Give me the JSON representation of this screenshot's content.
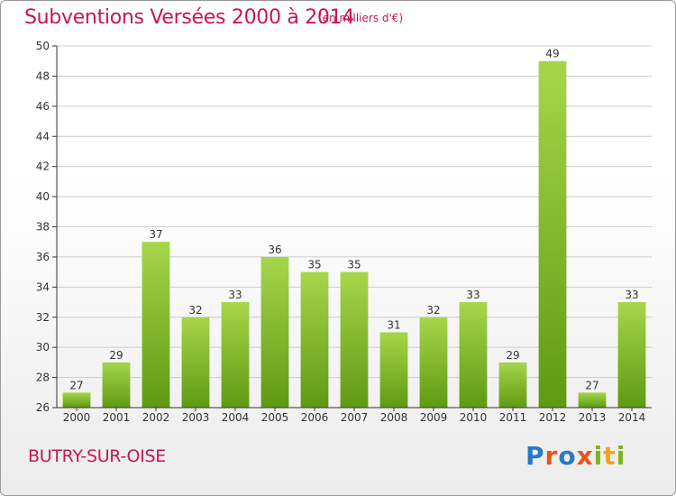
{
  "header": {
    "title": "Subventions Versées 2000 à 2014",
    "unit": "(en milliers d'€)"
  },
  "footer": {
    "place": "BUTRY-SUR-OISE",
    "logo_letters": [
      "P",
      "r",
      "o",
      "x",
      "i",
      "t",
      "i"
    ],
    "logo_colors": [
      "#2a79c9",
      "#e8541c",
      "#2a79c9",
      "#e8541c",
      "#7cb51b",
      "#f2a51c",
      "#7cb51b"
    ]
  },
  "colors": {
    "bar_light": "#a6d64b",
    "bar_dark": "#5f9a12",
    "axis": "#333333",
    "grid": "#cccccc"
  },
  "chart_data": {
    "type": "bar",
    "categories": [
      "2000",
      "2001",
      "2002",
      "2003",
      "2004",
      "2005",
      "2006",
      "2007",
      "2008",
      "2009",
      "2010",
      "2011",
      "2012",
      "2013",
      "2014"
    ],
    "values": [
      27,
      29,
      37,
      32,
      33,
      36,
      35,
      35,
      31,
      32,
      33,
      29,
      49,
      27,
      33
    ],
    "title": "Subventions Versées 2000 à 2014",
    "subtitle": "(en milliers d'€)",
    "ylim": [
      26,
      50
    ],
    "yticks": [
      26,
      28,
      30,
      32,
      34,
      36,
      38,
      40,
      42,
      44,
      46,
      48,
      50
    ],
    "grid": true,
    "data_labels": true
  }
}
